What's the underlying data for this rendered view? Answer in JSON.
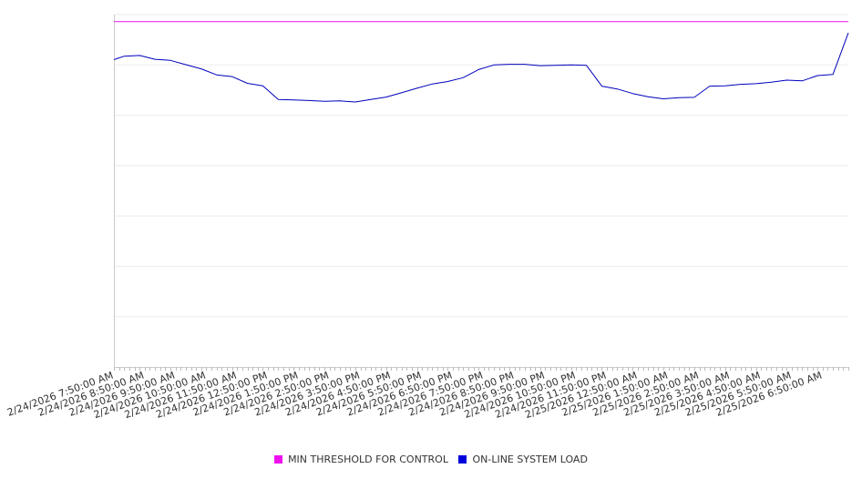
{
  "chart_data": {
    "type": "line",
    "title": "",
    "xlabel": "",
    "ylabel": "",
    "ylim": [
      0,
      100
    ],
    "grid": {
      "horizontal": true,
      "vertical": false
    },
    "legend_position": "bottom-center",
    "x_tick_labels": [
      "2/24/2026 7:50:00 AM",
      "2/24/2026 8:50:00 AM",
      "2/24/2026 9:50:00 AM",
      "2/24/2026 10:50:00 AM",
      "2/24/2026 11:50:00 AM",
      "2/24/2026 12:50:00 PM",
      "2/24/2026 1:50:00 PM",
      "2/24/2026 2:50:00 PM",
      "2/24/2026 3:50:00 PM",
      "2/24/2026 4:50:00 PM",
      "2/24/2026 5:50:00 PM",
      "2/24/2026 6:50:00 PM",
      "2/24/2026 7:50:00 PM",
      "2/24/2026 8:50:00 PM",
      "2/24/2026 9:50:00 PM",
      "2/24/2026 10:50:00 PM",
      "2/24/2026 11:50:00 PM",
      "2/25/2026 12:50:00 AM",
      "2/25/2026 1:50:00 AM",
      "2/25/2026 2:50:00 AM",
      "2/25/2026 3:50:00 AM",
      "2/25/2026 4:50:00 AM",
      "2/25/2026 5:50:00 AM",
      "2/25/2026 6:50:00 AM"
    ],
    "x_start": "2/24/2026 7:50:00 AM",
    "x_end": "2/25/2026 7:40:00 AM",
    "series": [
      {
        "name": "MIN THRESHOLD FOR CONTROL",
        "color": "#ee11ee",
        "x": [
          "2/24/2026 7:50:00 AM",
          "2/25/2026 7:40:00 AM"
        ],
        "y": [
          98,
          98
        ]
      },
      {
        "name": "ON-LINE SYSTEM LOAD",
        "color": "#0000bb",
        "x": [
          "2/24/2026 7:50:00 AM",
          "2/24/2026 8:10:00 AM",
          "2/24/2026 8:40:00 AM",
          "2/24/2026 9:10:00 AM",
          "2/24/2026 9:40:00 AM",
          "2/24/2026 10:10:00 AM",
          "2/24/2026 10:40:00 AM",
          "2/24/2026 11:10:00 AM",
          "2/24/2026 11:40:00 AM",
          "2/24/2026 12:10:00 PM",
          "2/24/2026 12:40:00 PM",
          "2/24/2026 1:10:00 PM",
          "2/24/2026 1:40:00 PM",
          "2/24/2026 2:10:00 PM",
          "2/24/2026 2:40:00 PM",
          "2/24/2026 3:10:00 PM",
          "2/24/2026 3:40:00 PM",
          "2/24/2026 4:10:00 PM",
          "2/24/2026 4:40:00 PM",
          "2/24/2026 5:10:00 PM",
          "2/24/2026 5:40:00 PM",
          "2/24/2026 6:10:00 PM",
          "2/24/2026 6:40:00 PM",
          "2/24/2026 7:10:00 PM",
          "2/24/2026 7:40:00 PM",
          "2/24/2026 8:10:00 PM",
          "2/24/2026 8:40:00 PM",
          "2/24/2026 9:10:00 PM",
          "2/24/2026 9:40:00 PM",
          "2/24/2026 10:10:00 PM",
          "2/24/2026 10:40:00 PM",
          "2/24/2026 11:10:00 PM",
          "2/24/2026 11:40:00 PM",
          "2/25/2026 12:10:00 AM",
          "2/25/2026 12:40:00 AM",
          "2/25/2026 1:10:00 AM",
          "2/25/2026 1:40:00 AM",
          "2/25/2026 2:10:00 AM",
          "2/25/2026 2:40:00 AM",
          "2/25/2026 3:10:00 AM",
          "2/25/2026 3:40:00 AM",
          "2/25/2026 4:10:00 AM",
          "2/25/2026 4:40:00 AM",
          "2/25/2026 5:10:00 AM",
          "2/25/2026 5:40:00 AM",
          "2/25/2026 6:10:00 AM",
          "2/25/2026 6:40:00 AM",
          "2/25/2026 7:10:00 AM",
          "2/25/2026 7:40:00 AM"
        ],
        "y": [
          87.2,
          88.2,
          88.4,
          87.3,
          87.0,
          85.8,
          84.6,
          82.9,
          82.4,
          80.5,
          79.8,
          75.9,
          75.8,
          75.6,
          75.4,
          75.5,
          75.2,
          75.9,
          76.6,
          77.8,
          79.1,
          80.3,
          81.0,
          82.1,
          84.4,
          85.7,
          85.9,
          85.9,
          85.5,
          85.6,
          85.7,
          85.6,
          79.7,
          78.9,
          77.6,
          76.7,
          76.1,
          76.4,
          76.5,
          79.7,
          79.8,
          80.2,
          80.4,
          80.8,
          81.4,
          81.2,
          82.7,
          83.0,
          94.8
        ]
      }
    ]
  },
  "legend": {
    "items": [
      {
        "label": "MIN THRESHOLD FOR CONTROL",
        "color": "#ee11ee"
      },
      {
        "label": "ON-LINE SYSTEM LOAD",
        "color": "#0000dd"
      }
    ]
  }
}
